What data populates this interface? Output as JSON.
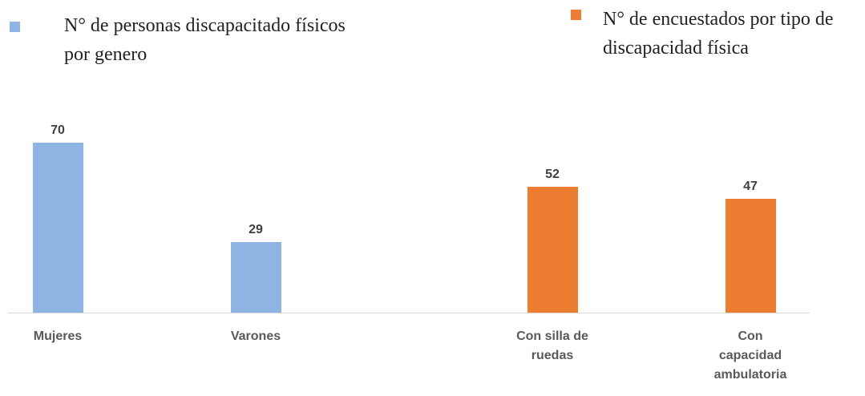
{
  "chart_data": {
    "type": "bar",
    "categories": [
      "Mujeres",
      "Varones",
      "Con silla de ruedas",
      "Con capacidad ambulatoria"
    ],
    "series": [
      {
        "name": "N° de personas discapacitado físicos por genero",
        "color": "#8db4e2",
        "values": [
          70,
          29,
          null,
          null
        ]
      },
      {
        "name": "N° de encuestados por tipo de discapacidad física",
        "color": "#ed7d31",
        "values": [
          null,
          null,
          52,
          47
        ]
      }
    ]
  }
}
